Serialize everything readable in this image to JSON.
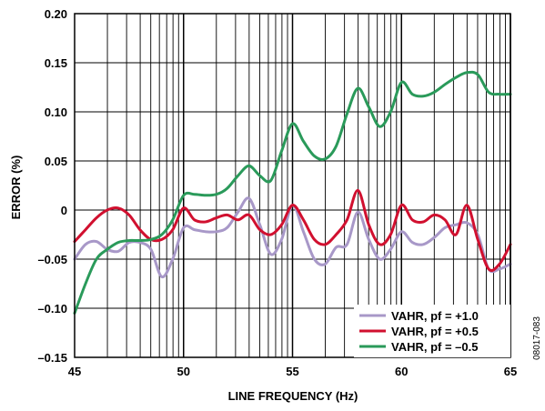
{
  "chart_data": {
    "type": "line",
    "title": "",
    "xlabel": "LINE FREQUENCY (Hz)",
    "ylabel": "ERROR (%)",
    "xlim": [
      45,
      65
    ],
    "ylim": [
      -0.15,
      0.2
    ],
    "x_ticks": [
      "45",
      "50",
      "55",
      "60",
      "65"
    ],
    "y_ticks": [
      "0.20",
      "0.15",
      "0.10",
      "0.05",
      "0",
      "–0.05",
      "–0.10",
      "–0.15"
    ],
    "grid": true,
    "legend_position": "bottom-right",
    "figure_id": "08017-083",
    "series": [
      {
        "name": "VAHR, pf = +1.0",
        "color": "#a898c8",
        "x": [
          45,
          45.5,
          46,
          46.5,
          47,
          47.5,
          48,
          48.5,
          49,
          49.5,
          50,
          50.5,
          51,
          51.5,
          52,
          52.5,
          53,
          53.5,
          54,
          54.5,
          55,
          55.5,
          56,
          56.5,
          57,
          57.5,
          58,
          58.5,
          59,
          59.5,
          60,
          60.5,
          61,
          61.5,
          62,
          62.5,
          63,
          63.5,
          64,
          64.5,
          65
        ],
        "values": [
          -0.05,
          -0.035,
          -0.032,
          -0.04,
          -0.042,
          -0.033,
          -0.033,
          -0.04,
          -0.068,
          -0.05,
          -0.018,
          -0.02,
          -0.022,
          -0.022,
          -0.018,
          -0.002,
          0.012,
          -0.015,
          -0.045,
          -0.03,
          0.005,
          -0.022,
          -0.05,
          -0.055,
          -0.038,
          -0.035,
          -0.002,
          -0.03,
          -0.05,
          -0.04,
          -0.022,
          -0.033,
          -0.035,
          -0.028,
          -0.018,
          -0.015,
          -0.013,
          -0.025,
          -0.06,
          -0.06,
          -0.055
        ]
      },
      {
        "name": "VAHR, pf = +0.5",
        "color": "#d1102f",
        "x": [
          45,
          45.5,
          46,
          46.5,
          47,
          47.5,
          48,
          48.5,
          49,
          49.5,
          50,
          50.5,
          51,
          51.5,
          52,
          52.5,
          53,
          53.5,
          54,
          54.5,
          55,
          55.5,
          56,
          56.5,
          57,
          57.5,
          58,
          58.5,
          59,
          59.5,
          60,
          60.5,
          61,
          61.5,
          62,
          62.5,
          63,
          63.5,
          64,
          64.5,
          65
        ],
        "values": [
          -0.032,
          -0.02,
          -0.008,
          0.0,
          0.002,
          -0.005,
          -0.02,
          -0.03,
          -0.03,
          -0.02,
          0.002,
          -0.01,
          -0.012,
          -0.008,
          -0.005,
          -0.01,
          -0.005,
          -0.02,
          -0.025,
          -0.015,
          0.005,
          -0.01,
          -0.03,
          -0.035,
          -0.025,
          -0.01,
          0.02,
          -0.015,
          -0.035,
          -0.025,
          0.005,
          -0.01,
          -0.012,
          -0.005,
          -0.01,
          -0.025,
          0.005,
          -0.03,
          -0.06,
          -0.055,
          -0.035
        ]
      },
      {
        "name": "VAHR, pf = –0.5",
        "color": "#2a9a5a",
        "x": [
          45,
          45.5,
          46,
          46.5,
          47,
          47.5,
          48,
          48.5,
          49,
          49.5,
          50,
          50.5,
          51,
          51.5,
          52,
          52.5,
          53,
          53.5,
          54,
          54.5,
          55,
          55.5,
          56,
          56.5,
          57,
          57.5,
          58,
          58.5,
          59,
          59.5,
          60,
          60.5,
          61,
          61.5,
          62,
          62.5,
          63,
          63.5,
          64,
          64.5,
          65
        ],
        "values": [
          -0.105,
          -0.075,
          -0.05,
          -0.04,
          -0.033,
          -0.031,
          -0.031,
          -0.03,
          -0.025,
          -0.01,
          0.015,
          0.016,
          0.015,
          0.016,
          0.022,
          0.035,
          0.045,
          0.035,
          0.03,
          0.06,
          0.088,
          0.07,
          0.055,
          0.052,
          0.065,
          0.098,
          0.124,
          0.105,
          0.085,
          0.1,
          0.13,
          0.118,
          0.116,
          0.12,
          0.128,
          0.135,
          0.14,
          0.138,
          0.12,
          0.118,
          0.118
        ]
      }
    ]
  }
}
